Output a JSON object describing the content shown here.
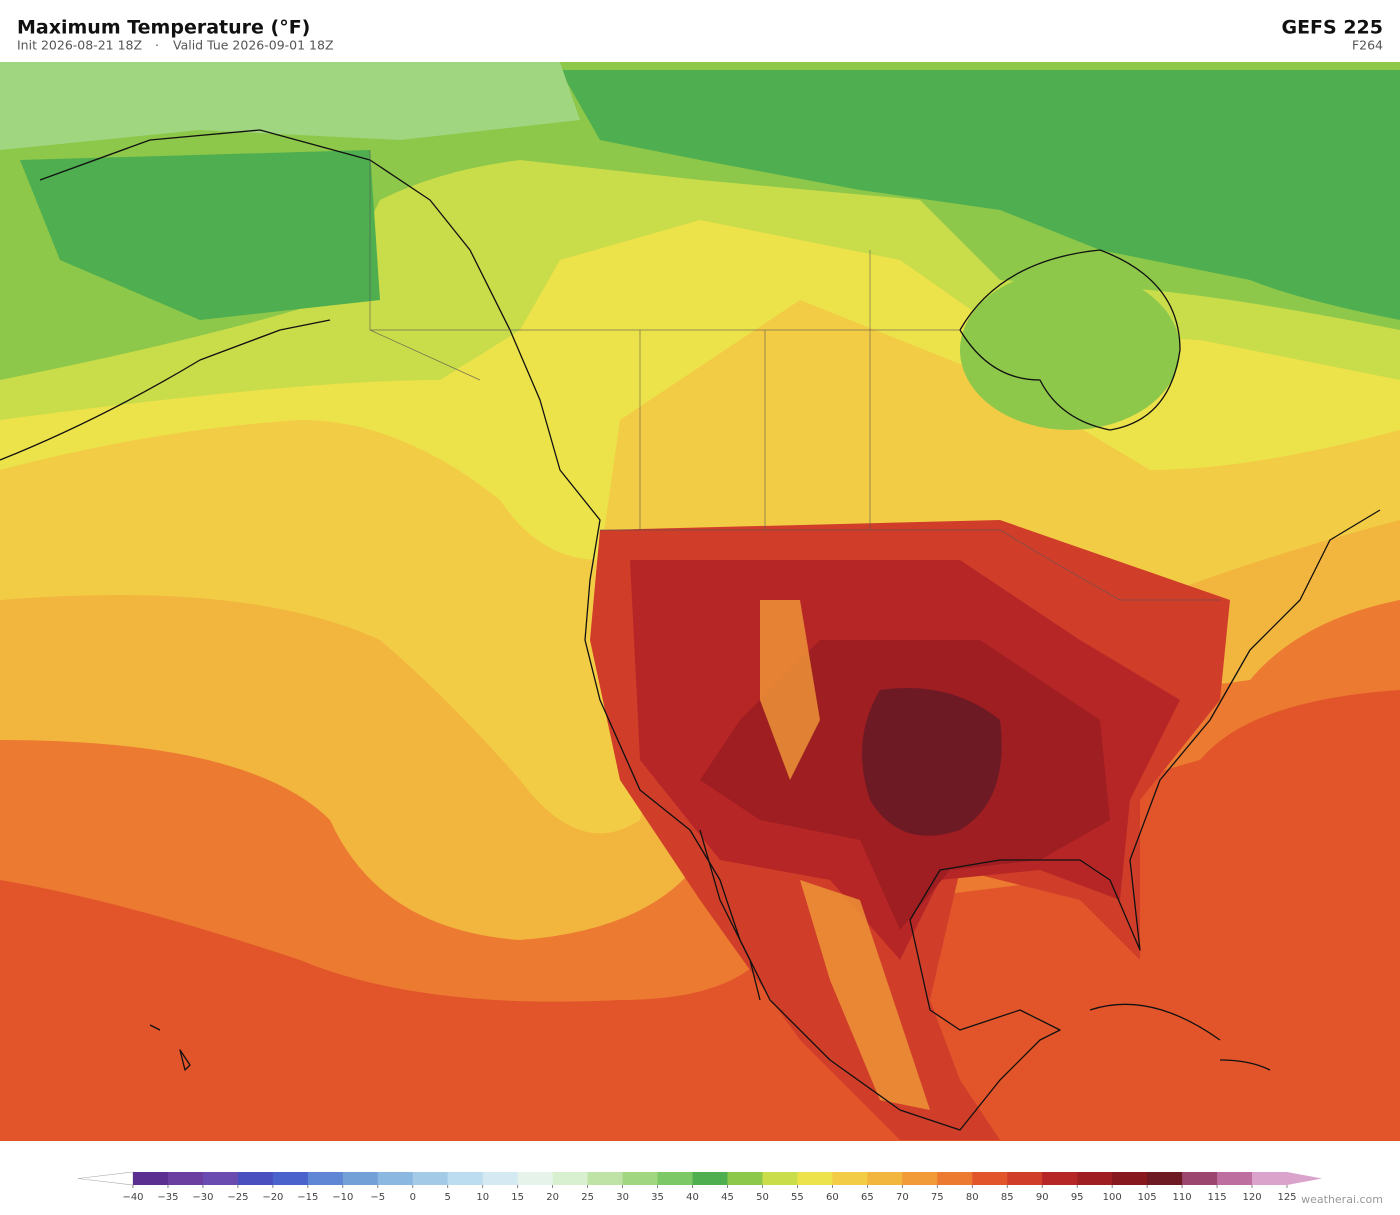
{
  "header": {
    "title": "Maximum Temperature  (°F)",
    "init": "Init 2026-08-21 18Z",
    "valid": "Valid Tue 2026-09-01 18Z",
    "model": "GEFS  225",
    "forecast_hour": "F264"
  },
  "colorbar": {
    "ticks": [
      {
        "value": -40,
        "label": "−40"
      },
      {
        "value": -35,
        "label": "−35"
      },
      {
        "value": -30,
        "label": "−30"
      },
      {
        "value": -25,
        "label": "−25"
      },
      {
        "value": -20,
        "label": "−20"
      },
      {
        "value": -15,
        "label": "−15"
      },
      {
        "value": -10,
        "label": "−10"
      },
      {
        "value": -5,
        "label": "−5"
      },
      0,
      5,
      10,
      15,
      20,
      25,
      30,
      35,
      40,
      45,
      50,
      55,
      60,
      65,
      70,
      75,
      80,
      85,
      90,
      95,
      100,
      105,
      110,
      115,
      120,
      125
    ],
    "colors": [
      "#5a2f8f",
      "#6a3fa0",
      "#6a4cb0",
      "#4a4fc0",
      "#4a63cc",
      "#5f86d4",
      "#74a0d8",
      "#8bb8e0",
      "#a3cbe8",
      "#bcdcef",
      "#d4e9f2",
      "#e6f3ea",
      "#d8efd0",
      "#bfe3a6",
      "#9fd67f",
      "#7cc866",
      "#4fae4f",
      "#8dc84a",
      "#c9dc4a",
      "#ece24a",
      "#f3cc45",
      "#f2b63f",
      "#f09a38",
      "#ec7a30",
      "#e2552b",
      "#d03e2a",
      "#b72626",
      "#9e1e22",
      "#87181e",
      "#6e1a24",
      "#9a466e",
      "#bd6fa0",
      "#d9a3cc"
    ],
    "extend_low_color": "#ffffff",
    "extend_high_color": "#d9a3cc"
  },
  "credit": "weatherai.com"
}
